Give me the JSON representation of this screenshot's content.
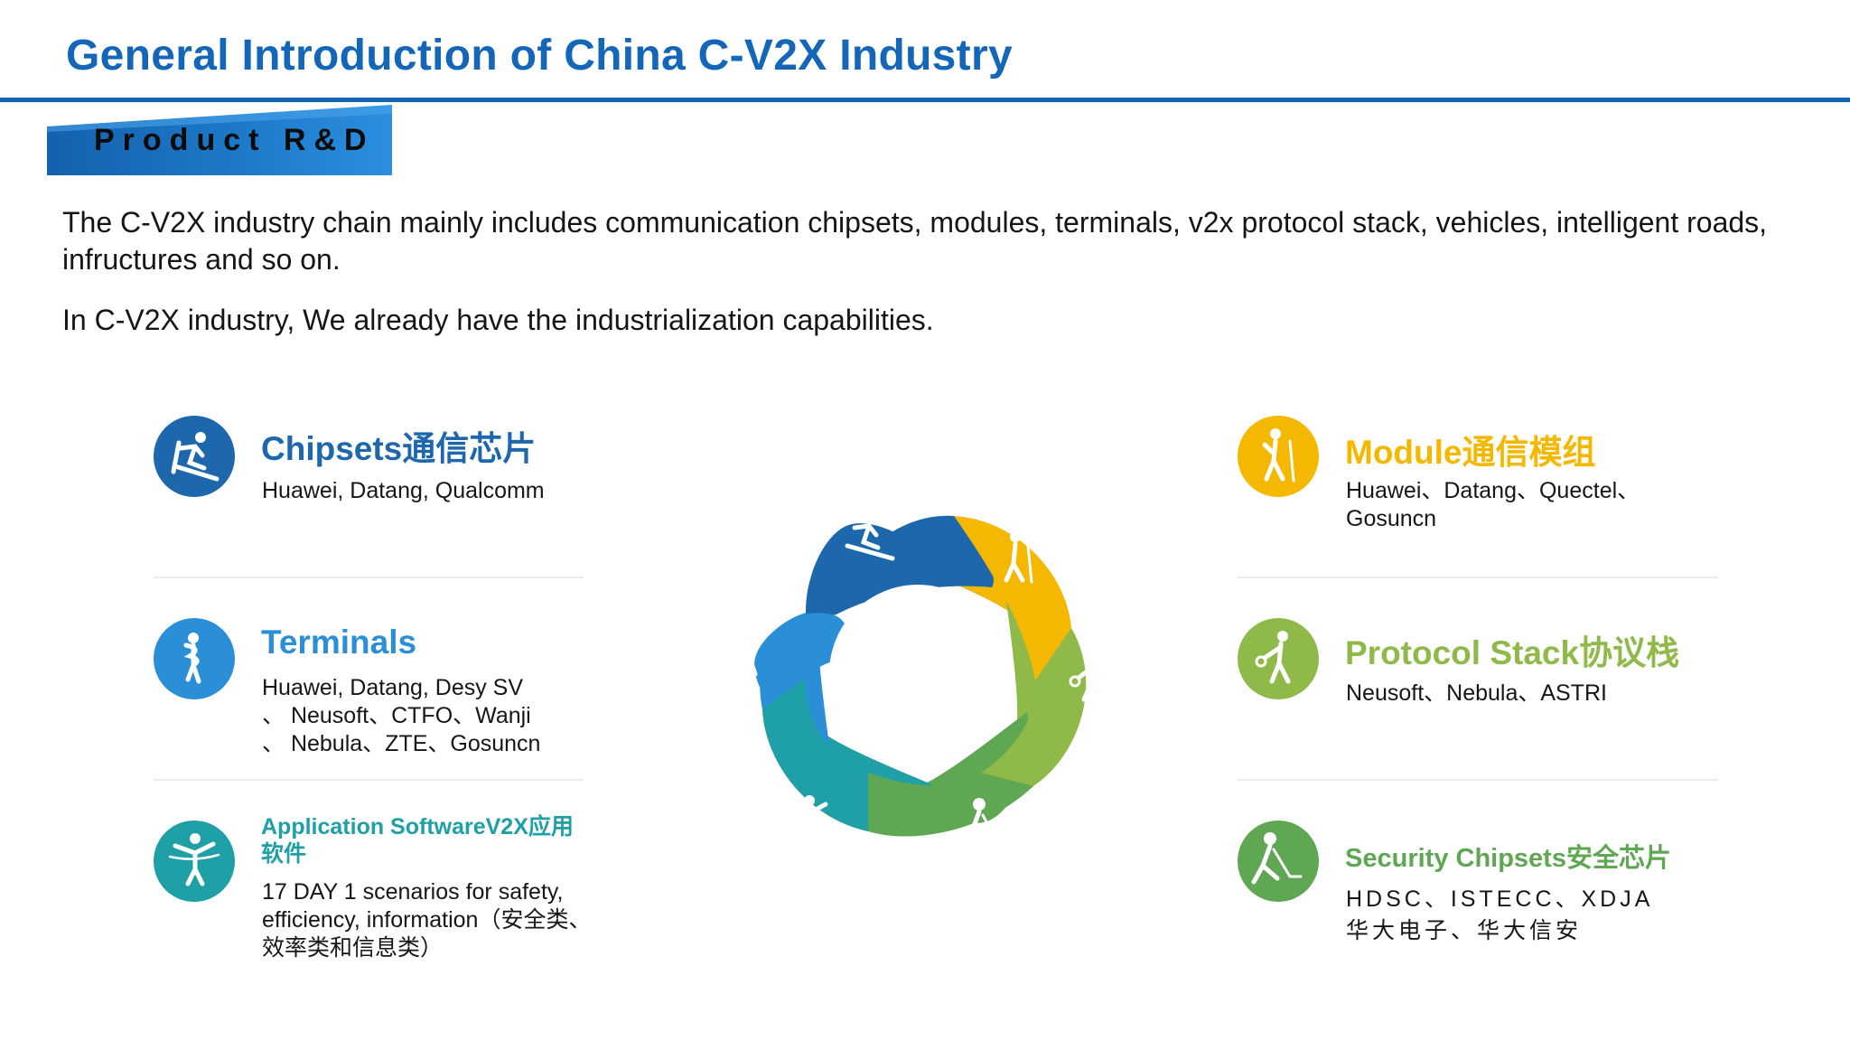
{
  "slide": {
    "title": "General Introduction of China C-V2X  Industry",
    "section": "Product R&D",
    "intro": [
      "The C-V2X industry chain mainly includes communication chipsets, modules, terminals, v2x protocol stack, vehicles, intelligent roads, infructures and so on.",
      "In C-V2X industry, We already have the industrialization capabilities."
    ]
  },
  "colors": {
    "title": "#1466b8",
    "chipsets": "#1d67ad",
    "terminals": "#2b8fd8",
    "application": "#1ea0a6",
    "module": "#f5b800",
    "protocol": "#8fba4a",
    "security": "#5fa752"
  },
  "items": {
    "chipsets": {
      "name": "Chipsets通信芯片",
      "detail": "Huawei, Datang, Qualcomm",
      "icon": "skier-icon"
    },
    "terminals": {
      "name": "Terminals",
      "detail": "Huawei, Datang, Desy SV\n、 Neusoft、CTFO、Wanji\n、 Nebula、ZTE、Gosuncn",
      "icon": "dancer-icon"
    },
    "application": {
      "name": "Application SoftwareV2X应用\n软件",
      "detail": "17 DAY 1 scenarios for safety,\nefficiency, information（安全类、\n效率类和信息类）",
      "icon": "runner-finish-icon"
    },
    "module": {
      "name": "Module通信模组",
      "detail": "Huawei、Datang、Quectel、\nGosuncn",
      "icon": "hiker-icon"
    },
    "protocol": {
      "name": "Protocol Stack协议栈",
      "detail": "Neusoft、Nebula、ASTRI",
      "icon": "bowler-icon"
    },
    "security": {
      "name": "Security Chipsets安全芯片",
      "detail": "HDSC、ISTECC、XDJA\n华大电子、华大信安",
      "icon": "hockey-player-icon"
    }
  }
}
